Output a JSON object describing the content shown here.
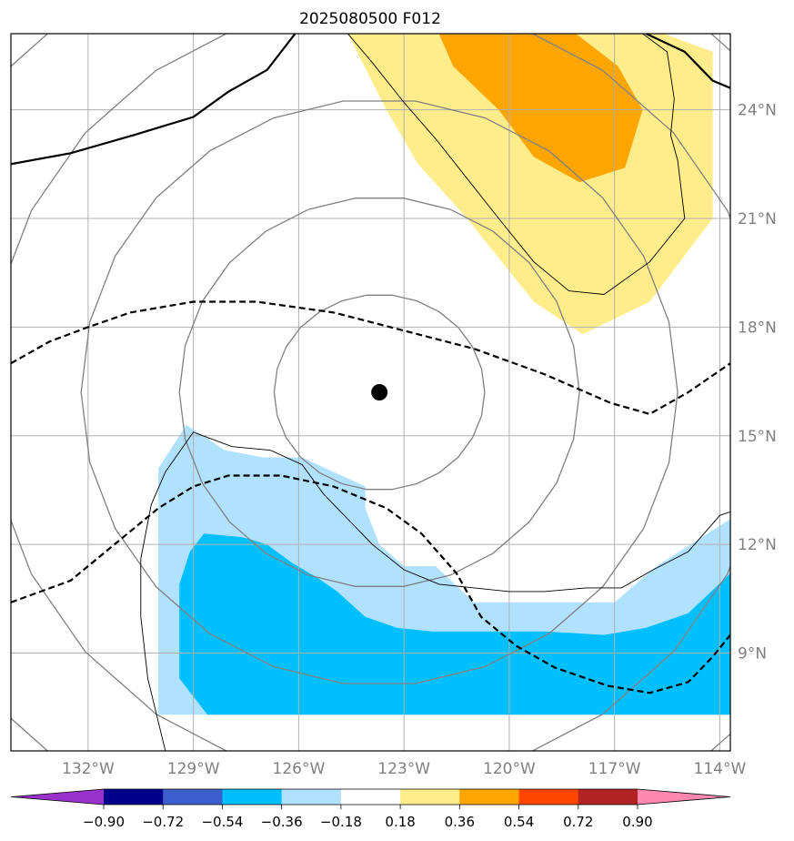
{
  "chart_data": {
    "type": "heatmap",
    "title": "2025080500 F012",
    "xlim": [
      -134.2,
      -113.7
    ],
    "ylim": [
      6.3,
      26.1
    ],
    "x_ticks": [
      {
        "value": -132,
        "label": "132°W"
      },
      {
        "value": -129,
        "label": "129°W"
      },
      {
        "value": -126,
        "label": "126°W"
      },
      {
        "value": -123,
        "label": "123°W"
      },
      {
        "value": -120,
        "label": "120°W"
      },
      {
        "value": -117,
        "label": "117°W"
      },
      {
        "value": -114,
        "label": "114°W"
      }
    ],
    "y_ticks": [
      {
        "value": 9,
        "label": "9°N"
      },
      {
        "value": 12,
        "label": "12°N"
      },
      {
        "value": 15,
        "label": "15°N"
      },
      {
        "value": 18,
        "label": "18°N"
      },
      {
        "value": 21,
        "label": "21°N"
      },
      {
        "value": 24,
        "label": "24°N"
      }
    ],
    "grid": true,
    "center": {
      "lon": -123.7,
      "lat": 16.2
    },
    "colorbar": {
      "placement": "bottom",
      "extend": "both",
      "levels": [
        -0.9,
        -0.72,
        -0.54,
        -0.36,
        -0.18,
        0.18,
        0.36,
        0.54,
        0.72,
        0.9
      ],
      "tick_labels": [
        "−0.90",
        "−0.72",
        "−0.54",
        "−0.36",
        "−0.18",
        "0.18",
        "0.36",
        "0.54",
        "0.72",
        "0.90"
      ],
      "colors": [
        "#9932cc",
        "#00008b",
        "#3a5fcd",
        "#00bfff",
        "#b0e2ff",
        "#ffffff",
        "#ffec8b",
        "#ffa500",
        "#ff4500",
        "#b22222",
        "#ff88b0"
      ]
    },
    "filled_regions": [
      {
        "level": "0.18 to 0.36",
        "color": "#ffec8b",
        "polygon": [
          [
            -124.6,
            26.1
          ],
          [
            -115.6,
            26.1
          ],
          [
            -114.2,
            25.6
          ],
          [
            -114.2,
            21.0
          ],
          [
            -116.0,
            18.7
          ],
          [
            -117.9,
            17.8
          ],
          [
            -119.3,
            18.7
          ],
          [
            -121.2,
            21.0
          ],
          [
            -122.6,
            22.5
          ],
          [
            -123.5,
            24.0
          ],
          [
            -124.6,
            26.1
          ]
        ]
      },
      {
        "level": "0.36 to 0.54",
        "color": "#ffa500",
        "polygon": [
          [
            -122.0,
            26.1
          ],
          [
            -118.1,
            26.1
          ],
          [
            -116.9,
            25.2
          ],
          [
            -116.2,
            24.0
          ],
          [
            -116.7,
            22.4
          ],
          [
            -118.0,
            22.0
          ],
          [
            -119.3,
            22.7
          ],
          [
            -120.3,
            24.0
          ],
          [
            -121.6,
            25.2
          ],
          [
            -122.0,
            26.1
          ]
        ]
      },
      {
        "level": "-0.36 to -0.18",
        "color": "#b0e2ff",
        "polygon": [
          [
            -130.0,
            7.3
          ],
          [
            -113.7,
            7.3
          ],
          [
            -113.7,
            12.7
          ],
          [
            -115.8,
            11.4
          ],
          [
            -117.0,
            10.4
          ],
          [
            -121.0,
            10.4
          ],
          [
            -122.1,
            11.4
          ],
          [
            -123.0,
            11.4
          ],
          [
            -123.7,
            12.0
          ],
          [
            -124.1,
            13.0
          ],
          [
            -124.1,
            13.6
          ],
          [
            -125.9,
            14.4
          ],
          [
            -127.0,
            14.4
          ],
          [
            -128.1,
            14.6
          ],
          [
            -129.2,
            15.3
          ],
          [
            -130.0,
            14.1
          ],
          [
            -130.0,
            7.3
          ]
        ]
      },
      {
        "level": "-0.54 to -0.36",
        "color": "#00bfff",
        "polygon": [
          [
            -128.6,
            7.3
          ],
          [
            -113.7,
            7.3
          ],
          [
            -113.7,
            11.2
          ],
          [
            -114.9,
            10.1
          ],
          [
            -116.1,
            9.7
          ],
          [
            -117.3,
            9.5
          ],
          [
            -119.0,
            9.6
          ],
          [
            -121.0,
            9.6
          ],
          [
            -122.2,
            9.6
          ],
          [
            -123.2,
            9.7
          ],
          [
            -124.1,
            10.0
          ],
          [
            -124.9,
            10.7
          ],
          [
            -125.5,
            11.1
          ],
          [
            -126.2,
            11.5
          ],
          [
            -126.9,
            12.0
          ],
          [
            -127.6,
            12.2
          ],
          [
            -128.7,
            12.3
          ],
          [
            -129.1,
            11.8
          ],
          [
            -129.4,
            10.9
          ],
          [
            -129.4,
            8.3
          ],
          [
            -128.6,
            7.3
          ]
        ]
      }
    ],
    "contours_thin": [
      [
        [
          -124.6,
          26.1
        ],
        [
          -123.9,
          25.3
        ],
        [
          -123.0,
          24.2
        ],
        [
          -122.1,
          23.2
        ],
        [
          -121.2,
          22.1
        ],
        [
          -120.3,
          21.0
        ],
        [
          -119.3,
          19.8
        ],
        [
          -118.3,
          19.0
        ],
        [
          -117.3,
          18.9
        ],
        [
          -116.0,
          19.8
        ],
        [
          -115.0,
          21.0
        ],
        [
          -115.2,
          22.6
        ],
        [
          -115.4,
          23.3
        ],
        [
          -115.3,
          24.3
        ],
        [
          -115.5,
          25.6
        ],
        [
          -116.2,
          26.1
        ]
      ],
      [
        [
          -129.8,
          6.3
        ],
        [
          -130.3,
          8.3
        ],
        [
          -130.5,
          10.0
        ],
        [
          -130.5,
          11.6
        ],
        [
          -130.2,
          13.1
        ],
        [
          -129.8,
          14.0
        ],
        [
          -129.0,
          15.1
        ],
        [
          -127.9,
          14.7
        ],
        [
          -126.8,
          14.6
        ],
        [
          -125.9,
          14.2
        ],
        [
          -125.3,
          13.4
        ],
        [
          -124.6,
          12.7
        ],
        [
          -123.9,
          12.0
        ],
        [
          -123.0,
          11.3
        ],
        [
          -122.0,
          10.9
        ],
        [
          -121.0,
          10.8
        ],
        [
          -120.0,
          10.7
        ],
        [
          -119.0,
          10.7
        ],
        [
          -117.8,
          10.8
        ],
        [
          -116.8,
          10.8
        ],
        [
          -115.9,
          11.3
        ],
        [
          -114.9,
          11.8
        ],
        [
          -114.0,
          12.8
        ],
        [
          -113.7,
          12.9
        ]
      ]
    ],
    "contours_gray": [
      {
        "type": "circle",
        "center": [
          -123.7,
          16.2
        ],
        "rx": 3.0,
        "ry": 2.7
      },
      {
        "type": "circle",
        "center": [
          -123.7,
          16.2
        ],
        "rx": 5.7,
        "ry": 5.4
      },
      {
        "type": "circle",
        "center": [
          -123.7,
          16.2
        ],
        "rx": 8.5,
        "ry": 8.1
      },
      {
        "type": "circle",
        "center": [
          -123.7,
          16.2
        ],
        "rx": 11.2,
        "ry": 10.8
      },
      {
        "type": "circle",
        "center": [
          -123.7,
          16.2
        ],
        "rx": 14.0,
        "ry": 13.6
      }
    ],
    "lines_solid_black": [
      [
        [
          -134.2,
          22.5
        ],
        [
          -132.5,
          22.8
        ],
        [
          -130.7,
          23.3
        ],
        [
          -129.0,
          23.8
        ],
        [
          -128.0,
          24.5
        ],
        [
          -126.9,
          25.1
        ],
        [
          -126.1,
          26.1
        ]
      ],
      [
        [
          -116.1,
          26.1
        ],
        [
          -115.0,
          25.6
        ],
        [
          -114.2,
          24.8
        ],
        [
          -113.7,
          24.6
        ]
      ]
    ],
    "lines_dashed_black": [
      [
        [
          -134.2,
          17.0
        ],
        [
          -133.1,
          17.6
        ],
        [
          -132.0,
          18.0
        ],
        [
          -130.8,
          18.4
        ],
        [
          -129.0,
          18.7
        ],
        [
          -127.2,
          18.7
        ],
        [
          -125.0,
          18.4
        ],
        [
          -123.0,
          17.9
        ],
        [
          -121.0,
          17.4
        ],
        [
          -119.0,
          16.7
        ],
        [
          -117.1,
          15.9
        ],
        [
          -116.0,
          15.6
        ],
        [
          -114.9,
          16.2
        ],
        [
          -113.7,
          17.0
        ]
      ],
      [
        [
          -134.2,
          10.4
        ],
        [
          -132.5,
          11.0
        ],
        [
          -131.0,
          12.2
        ],
        [
          -130.0,
          13.0
        ],
        [
          -129.0,
          13.6
        ],
        [
          -128.0,
          13.9
        ],
        [
          -126.5,
          13.9
        ],
        [
          -125.0,
          13.6
        ],
        [
          -123.5,
          13.0
        ],
        [
          -122.5,
          12.3
        ],
        [
          -121.5,
          11.2
        ],
        [
          -120.8,
          10.0
        ],
        [
          -119.8,
          9.2
        ],
        [
          -118.7,
          8.6
        ],
        [
          -117.2,
          8.1
        ],
        [
          -116.0,
          7.9
        ],
        [
          -114.9,
          8.2
        ],
        [
          -114.2,
          8.9
        ],
        [
          -113.7,
          9.5
        ]
      ]
    ]
  }
}
